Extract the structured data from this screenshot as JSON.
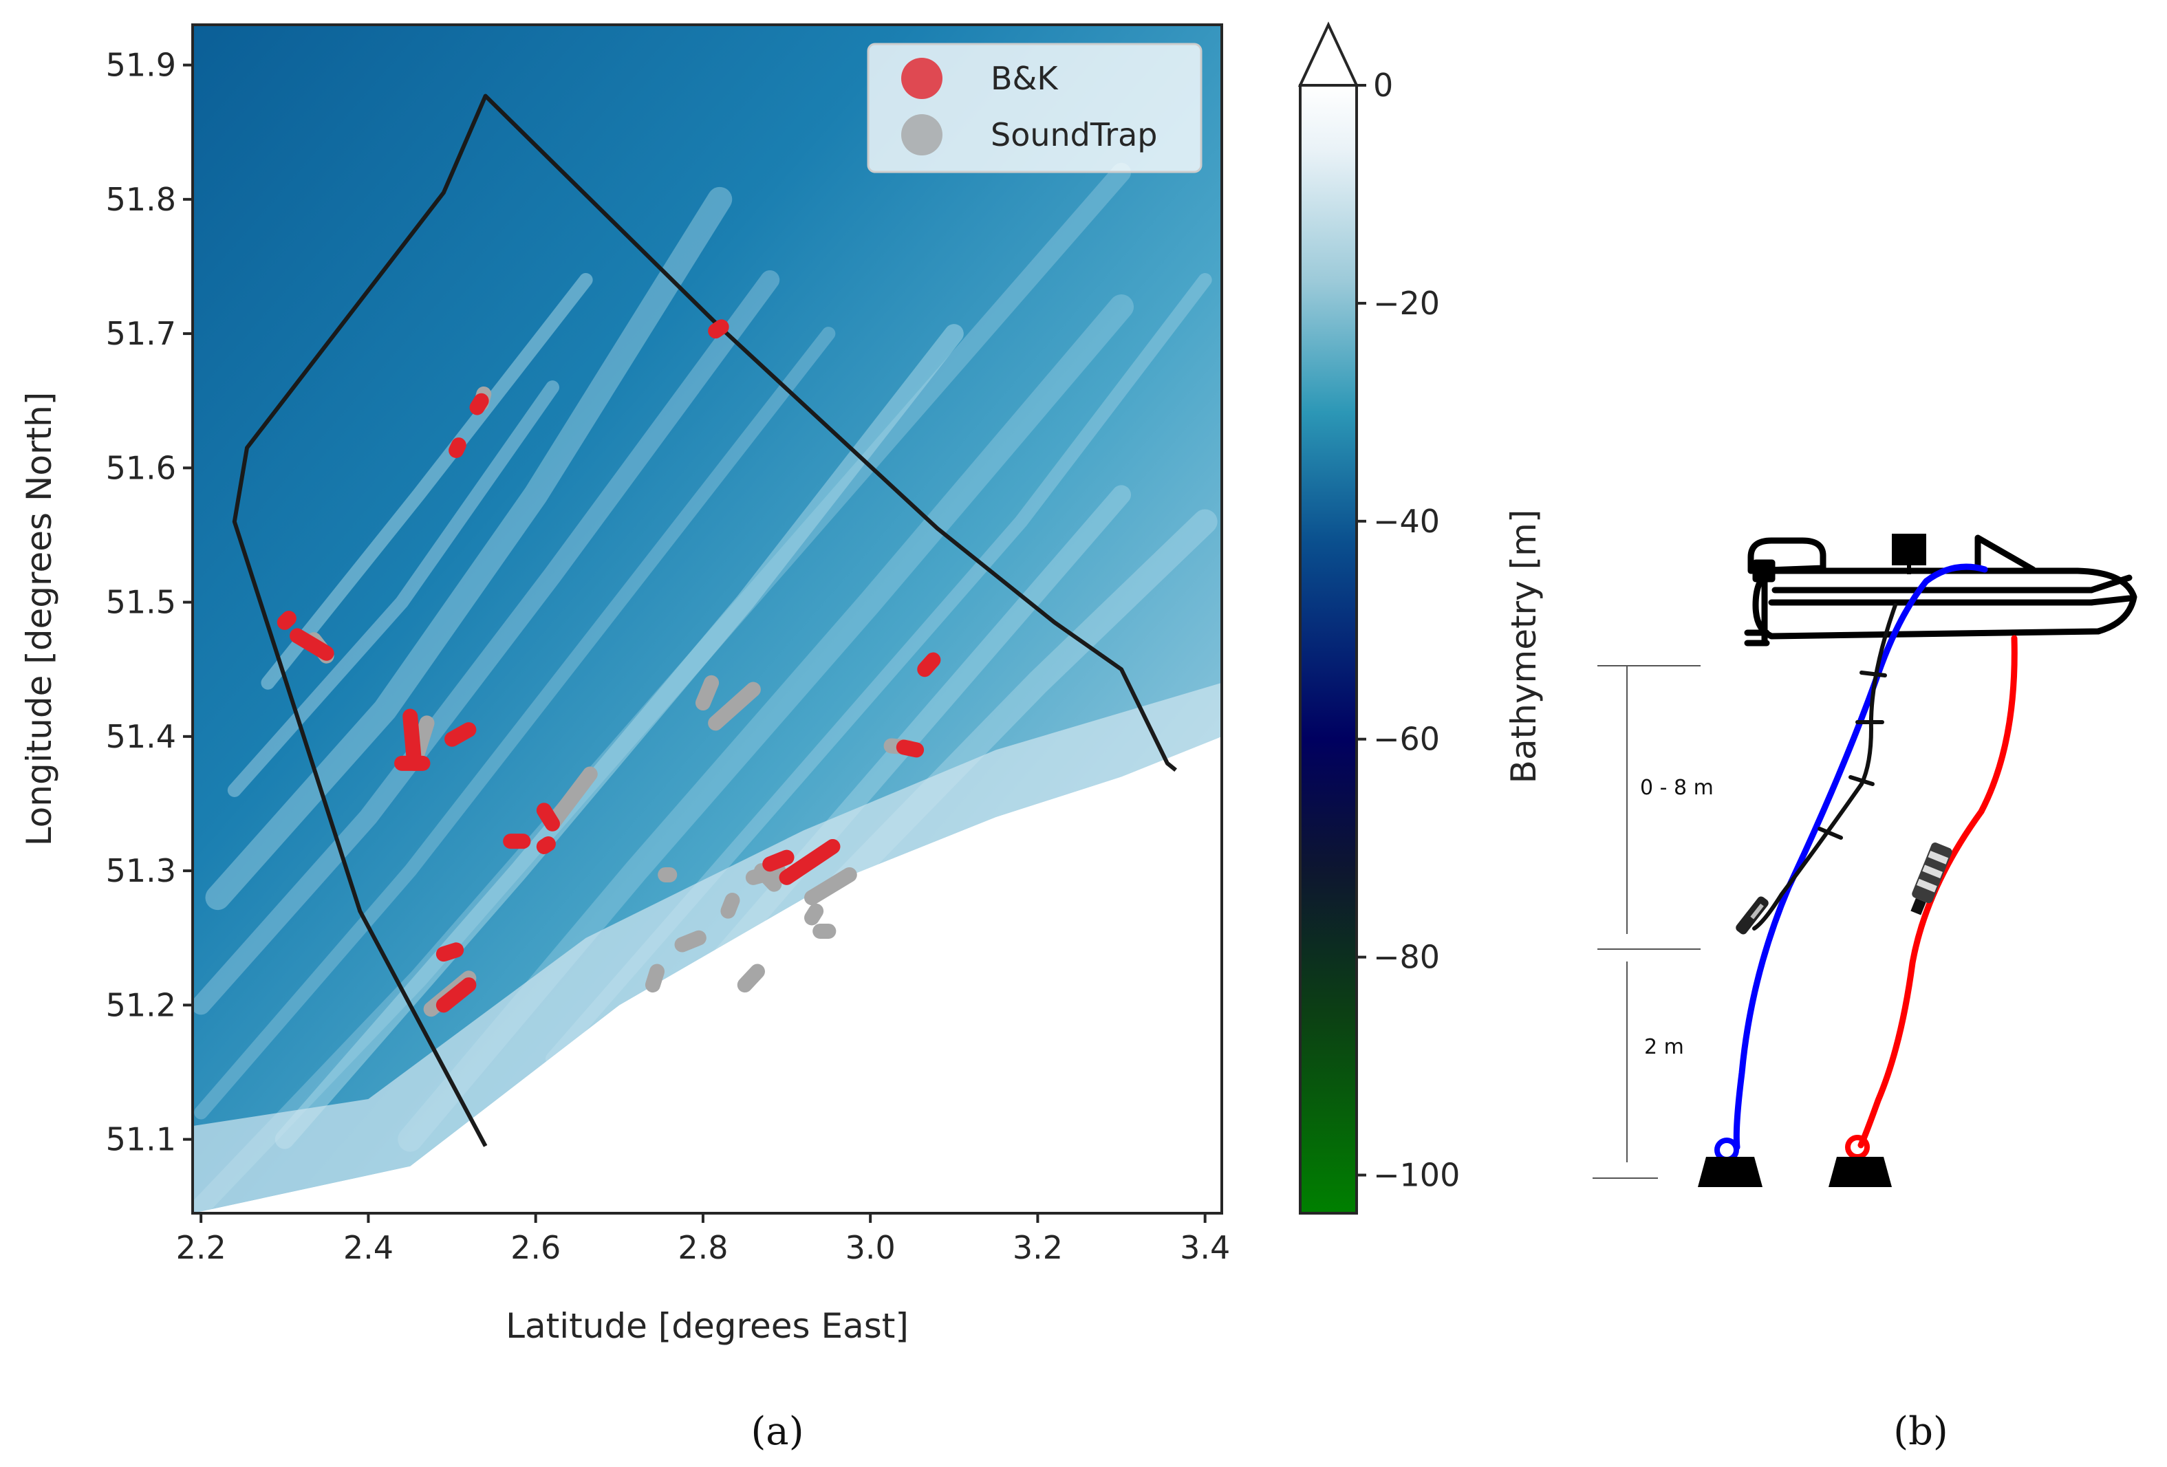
{
  "map": {
    "xlabel": "Latitude [degrees East]",
    "ylabel": "Longitude [degrees North]",
    "xlim": [
      2.19,
      3.42
    ],
    "ylim": [
      51.045,
      51.93
    ],
    "xticks": [
      {
        "value": 2.2,
        "label": "2.2"
      },
      {
        "value": 2.4,
        "label": "2.4"
      },
      {
        "value": 2.6,
        "label": "2.6"
      },
      {
        "value": 2.8,
        "label": "2.8"
      },
      {
        "value": 3.0,
        "label": "3.0"
      },
      {
        "value": 3.2,
        "label": "3.2"
      },
      {
        "value": 3.4,
        "label": "3.4"
      }
    ],
    "yticks": [
      {
        "value": 51.1,
        "label": "51.1"
      },
      {
        "value": 51.2,
        "label": "51.2"
      },
      {
        "value": 51.3,
        "label": "51.3"
      },
      {
        "value": 51.4,
        "label": "51.4"
      },
      {
        "value": 51.5,
        "label": "51.5"
      },
      {
        "value": 51.6,
        "label": "51.6"
      },
      {
        "value": 51.7,
        "label": "51.7"
      },
      {
        "value": 51.8,
        "label": "51.8"
      },
      {
        "value": 51.9,
        "label": "51.9"
      }
    ],
    "boundary": [
      [
        2.54,
        51.095
      ],
      [
        2.39,
        51.27
      ],
      [
        2.24,
        51.56
      ],
      [
        2.255,
        51.615
      ],
      [
        2.49,
        51.805
      ],
      [
        2.54,
        51.877
      ],
      [
        2.82,
        51.705
      ],
      [
        3.08,
        51.555
      ],
      [
        3.22,
        51.485
      ],
      [
        3.3,
        51.45
      ],
      [
        3.355,
        51.38
      ],
      [
        3.365,
        51.375
      ]
    ],
    "legend": {
      "position": "top-right",
      "entries": [
        {
          "label": "B&K",
          "color": "#e2222a"
        },
        {
          "label": "SoundTrap",
          "color": "#a6a6a6"
        }
      ]
    },
    "colors": {
      "shallow": "#ffffff",
      "mid": "#3f9fc2",
      "deep": "#0a5e96",
      "boundary": "#1a1a1a",
      "bk": "#e2222a",
      "soundtrap": "#a6a6a6"
    },
    "tracks_bk": [
      [
        [
          2.53,
          51.645
        ],
        [
          2.535,
          51.65
        ]
      ],
      [
        [
          2.505,
          51.613
        ],
        [
          2.508,
          51.617
        ]
      ],
      [
        [
          2.815,
          51.702
        ],
        [
          2.822,
          51.705
        ]
      ],
      [
        [
          2.3,
          51.485
        ],
        [
          2.305,
          51.488
        ]
      ],
      [
        [
          2.315,
          51.475
        ],
        [
          2.35,
          51.462
        ]
      ],
      [
        [
          2.45,
          51.415
        ],
        [
          2.455,
          51.38
        ]
      ],
      [
        [
          2.44,
          51.38
        ],
        [
          2.465,
          51.38
        ]
      ],
      [
        [
          2.5,
          51.398
        ],
        [
          2.52,
          51.405
        ]
      ],
      [
        [
          3.065,
          51.45
        ],
        [
          3.075,
          51.457
        ]
      ],
      [
        [
          3.04,
          51.392
        ],
        [
          3.055,
          51.39
        ]
      ],
      [
        [
          2.61,
          51.345
        ],
        [
          2.62,
          51.335
        ]
      ],
      [
        [
          2.57,
          51.322
        ],
        [
          2.585,
          51.322
        ]
      ],
      [
        [
          2.61,
          51.318
        ],
        [
          2.615,
          51.32
        ]
      ],
      [
        [
          2.88,
          51.305
        ],
        [
          2.9,
          51.31
        ]
      ],
      [
        [
          2.9,
          51.295
        ],
        [
          2.955,
          51.318
        ]
      ],
      [
        [
          2.49,
          51.238
        ],
        [
          2.505,
          51.241
        ]
      ],
      [
        [
          2.49,
          51.2
        ],
        [
          2.52,
          51.215
        ]
      ]
    ],
    "tracks_soundtrap": [
      [
        [
          2.535,
          51.648
        ],
        [
          2.538,
          51.655
        ]
      ],
      [
        [
          2.335,
          51.472
        ],
        [
          2.35,
          51.46
        ]
      ],
      [
        [
          2.455,
          51.38
        ],
        [
          2.47,
          51.41
        ]
      ],
      [
        [
          2.8,
          51.425
        ],
        [
          2.81,
          51.44
        ]
      ],
      [
        [
          2.815,
          51.41
        ],
        [
          2.86,
          51.435
        ]
      ],
      [
        [
          2.62,
          51.335
        ],
        [
          2.665,
          51.372
        ]
      ],
      [
        [
          3.025,
          51.393
        ],
        [
          3.045,
          51.392
        ]
      ],
      [
        [
          2.755,
          51.297
        ],
        [
          2.76,
          51.297
        ]
      ],
      [
        [
          2.87,
          51.3
        ],
        [
          2.885,
          51.29
        ]
      ],
      [
        [
          2.86,
          51.295
        ],
        [
          2.89,
          51.3
        ]
      ],
      [
        [
          2.93,
          51.28
        ],
        [
          2.975,
          51.297
        ]
      ],
      [
        [
          2.93,
          51.265
        ],
        [
          2.935,
          51.27
        ]
      ],
      [
        [
          2.94,
          51.255
        ],
        [
          2.95,
          51.255
        ]
      ],
      [
        [
          2.83,
          51.27
        ],
        [
          2.835,
          51.278
        ]
      ],
      [
        [
          2.775,
          51.245
        ],
        [
          2.795,
          51.25
        ]
      ],
      [
        [
          2.74,
          51.215
        ],
        [
          2.745,
          51.225
        ]
      ],
      [
        [
          2.85,
          51.215
        ],
        [
          2.865,
          51.225
        ]
      ],
      [
        [
          2.475,
          51.197
        ],
        [
          2.52,
          51.22
        ]
      ]
    ]
  },
  "colorbar": {
    "label": "Bathymetry [m]",
    "min": -103.5,
    "max": 0,
    "ticks": [
      {
        "value": 0,
        "label": "0"
      },
      {
        "value": -20,
        "label": "−20"
      },
      {
        "value": -40,
        "label": "−40"
      },
      {
        "value": -60,
        "label": "−60"
      },
      {
        "value": -80,
        "label": "−80"
      },
      {
        "value": -100,
        "label": "−100"
      }
    ],
    "stops": [
      {
        "value": 0,
        "color": "#ffffff"
      },
      {
        "value": -6,
        "color": "#e9f2f7"
      },
      {
        "value": -18,
        "color": "#9ccad9"
      },
      {
        "value": -30,
        "color": "#2c97b6"
      },
      {
        "value": -42,
        "color": "#0a4f8e"
      },
      {
        "value": -60,
        "color": "#000060"
      },
      {
        "value": -72,
        "color": "#0d1630"
      },
      {
        "value": -85,
        "color": "#0c3f14"
      },
      {
        "value": -103.5,
        "color": "#008000"
      }
    ]
  },
  "diagram": {
    "dim_top_label": "0 - 8 m",
    "dim_bottom_label": "2 m",
    "cable_colors": {
      "left": "#0000ff",
      "right": "#ff0000",
      "hydrophone": "#111111"
    }
  },
  "panels": {
    "a": "(a)",
    "b": "(b)"
  }
}
